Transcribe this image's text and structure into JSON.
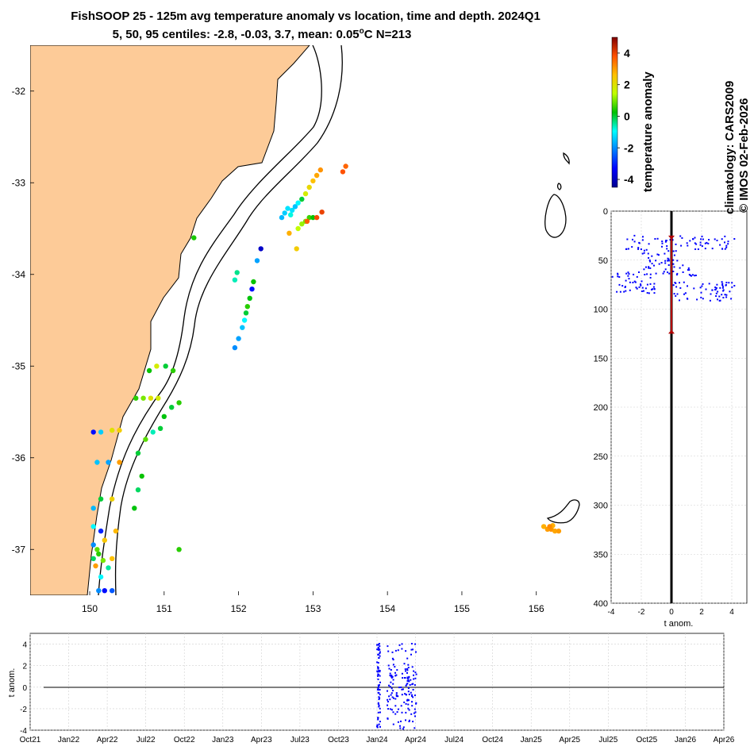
{
  "title": {
    "line1": "FishSOOP 25 - 125m avg temperature anomaly vs location, time and depth. 2024Q1",
    "line2": "5, 50, 95 centiles: -2.8, -0.03, 3.7, mean: 0.05",
    "line2_sup": "o",
    "line2_tail": "C N=213"
  },
  "side_labels": {
    "climatology": "climatology: CARS2009",
    "copyright": "© IMOS 02-Feb-2026",
    "colorbar_label": "temperature anomaly"
  },
  "colors": {
    "land": "#fdcb98",
    "coast": "#000000",
    "profile_dots": "#0000ff",
    "mean_line": "#b00000"
  },
  "chart_data": [
    {
      "id": "map",
      "type": "scatter",
      "xlim": [
        149.2,
        156.6
      ],
      "ylim": [
        -37.5,
        -31.5
      ],
      "xticks": [
        150,
        151,
        152,
        153,
        154,
        155,
        156
      ],
      "yticks": [
        -32,
        -33,
        -34,
        -35,
        -36,
        -37
      ],
      "points": [
        [
          152.8,
          -33.5,
          1.5
        ],
        [
          152.85,
          -33.45,
          1.2
        ],
        [
          152.9,
          -33.42,
          1.0
        ],
        [
          152.95,
          -33.38,
          0.6
        ],
        [
          153.0,
          -33.38,
          0.3
        ],
        [
          152.7,
          -33.35,
          -0.8
        ],
        [
          152.72,
          -33.3,
          -1.2
        ],
        [
          152.76,
          -33.26,
          -1.5
        ],
        [
          152.8,
          -33.22,
          -1.0
        ],
        [
          152.85,
          -33.18,
          0.0
        ],
        [
          152.9,
          -33.12,
          1.8
        ],
        [
          152.95,
          -33.05,
          2.2
        ],
        [
          153.0,
          -32.98,
          2.6
        ],
        [
          153.05,
          -32.92,
          2.9
        ],
        [
          153.1,
          -32.86,
          3.1
        ],
        [
          152.58,
          -33.38,
          -1.6
        ],
        [
          152.62,
          -33.33,
          -1.4
        ],
        [
          152.66,
          -33.28,
          -1.2
        ],
        [
          152.68,
          -33.55,
          2.8
        ],
        [
          152.78,
          -33.72,
          2.4
        ],
        [
          152.92,
          -33.42,
          3.7
        ],
        [
          153.05,
          -33.38,
          3.9
        ],
        [
          153.12,
          -33.32,
          4.0
        ],
        [
          153.4,
          -32.88,
          3.8
        ],
        [
          153.44,
          -32.82,
          3.6
        ],
        [
          152.3,
          -33.72,
          -3.9
        ],
        [
          152.25,
          -33.85,
          -1.8
        ],
        [
          152.2,
          -34.08,
          0.3
        ],
        [
          152.18,
          -34.16,
          -3.2
        ],
        [
          152.15,
          -34.26,
          0.2
        ],
        [
          152.12,
          -34.35,
          0.5
        ],
        [
          152.1,
          -34.42,
          0.0
        ],
        [
          152.08,
          -34.5,
          -1.0
        ],
        [
          152.05,
          -34.58,
          -1.5
        ],
        [
          152.0,
          -34.7,
          -1.8
        ],
        [
          151.95,
          -34.8,
          -2.0
        ],
        [
          151.98,
          -33.98,
          -0.4
        ],
        [
          151.95,
          -34.06,
          -0.6
        ],
        [
          151.12,
          -35.05,
          0.5
        ],
        [
          151.02,
          -35.0,
          0.0
        ],
        [
          150.9,
          -35.0,
          1.8
        ],
        [
          150.8,
          -35.05,
          0.3
        ],
        [
          150.62,
          -35.35,
          0.5
        ],
        [
          150.72,
          -35.35,
          1.0
        ],
        [
          150.82,
          -35.35,
          2.0
        ],
        [
          150.92,
          -35.35,
          1.8
        ],
        [
          151.2,
          -35.4,
          0.5
        ],
        [
          151.1,
          -35.45,
          0.0
        ],
        [
          151.0,
          -35.55,
          0.2
        ],
        [
          150.95,
          -35.68,
          0.0
        ],
        [
          150.85,
          -35.72,
          -0.6
        ],
        [
          150.75,
          -35.8,
          0.8
        ],
        [
          150.65,
          -35.95,
          0.0
        ],
        [
          150.7,
          -36.2,
          0.3
        ],
        [
          150.65,
          -36.35,
          -0.2
        ],
        [
          150.6,
          -36.55,
          0.2
        ],
        [
          150.05,
          -35.72,
          -3.2
        ],
        [
          150.15,
          -35.72,
          -1.4
        ],
        [
          150.3,
          -35.7,
          2.0
        ],
        [
          150.4,
          -35.7,
          2.4
        ],
        [
          150.1,
          -36.05,
          -1.5
        ],
        [
          150.25,
          -36.05,
          -1.8
        ],
        [
          150.4,
          -36.05,
          3.0
        ],
        [
          150.15,
          -36.45,
          0.0
        ],
        [
          150.3,
          -36.45,
          2.3
        ],
        [
          150.05,
          -36.55,
          -1.6
        ],
        [
          150.05,
          -36.75,
          -1.0
        ],
        [
          150.15,
          -36.8,
          -3.0
        ],
        [
          150.2,
          -36.9,
          2.5
        ],
        [
          150.35,
          -36.8,
          2.7
        ],
        [
          150.05,
          -36.95,
          -2.0
        ],
        [
          150.12,
          -37.05,
          0.5
        ],
        [
          150.18,
          -37.12,
          1.0
        ],
        [
          150.25,
          -37.2,
          -0.5
        ],
        [
          150.08,
          -37.18,
          3.0
        ],
        [
          150.15,
          -37.3,
          -1.0
        ],
        [
          150.3,
          -37.45,
          -2.5
        ],
        [
          150.12,
          -37.45,
          -2.0
        ],
        [
          150.2,
          -37.45,
          -3.2
        ],
        [
          150.3,
          -37.1,
          2.6
        ],
        [
          150.05,
          -37.1,
          -0.2
        ],
        [
          150.1,
          -37.0,
          0.8
        ],
        [
          151.4,
          -33.6,
          0.4
        ],
        [
          151.2,
          -37.0,
          0.5
        ],
        [
          156.1,
          -36.75,
          2.8
        ],
        [
          156.15,
          -36.78,
          3.0
        ],
        [
          156.2,
          -36.78,
          3.1
        ],
        [
          156.25,
          -36.8,
          2.9
        ],
        [
          156.3,
          -36.8,
          3.0
        ],
        [
          156.22,
          -36.74,
          2.8
        ],
        [
          156.18,
          -36.75,
          3.2
        ]
      ]
    },
    {
      "id": "colorbar",
      "type": "heatmap",
      "label": "temperature anomaly",
      "range": [
        -4.5,
        5
      ],
      "ticks": [
        4,
        2,
        0,
        -2,
        -4
      ]
    },
    {
      "id": "depth-profile",
      "type": "scatter",
      "xlabel": "t anom.",
      "xlim": [
        -4,
        5
      ],
      "ylim": [
        0,
        400
      ],
      "xticks": [
        -4,
        -2,
        0,
        2,
        4
      ],
      "yticks": [
        0,
        50,
        100,
        150,
        200,
        250,
        300,
        350,
        400
      ],
      "mean_range": [
        25,
        125
      ]
    },
    {
      "id": "time-series",
      "type": "scatter",
      "ylabel": "t anom.",
      "ylim": [
        -4,
        5
      ],
      "yticks": [
        4,
        2,
        0,
        -2,
        -4
      ],
      "categories": [
        "Oct21",
        "Jan22",
        "Apr22",
        "Jul22",
        "Oct22",
        "Jan23",
        "Apr23",
        "Jul23",
        "Oct23",
        "Jan24",
        "Apr24",
        "Jul24",
        "Oct24",
        "Jan25",
        "Apr25",
        "Jul25",
        "Oct25",
        "Jan26",
        "Apr26"
      ],
      "series": [
        {
          "name": "2024Q1 anomalies",
          "x_month_range": [
            27.0,
            30.1
          ],
          "n": 213,
          "min": -4,
          "max": 4.2
        }
      ]
    }
  ]
}
